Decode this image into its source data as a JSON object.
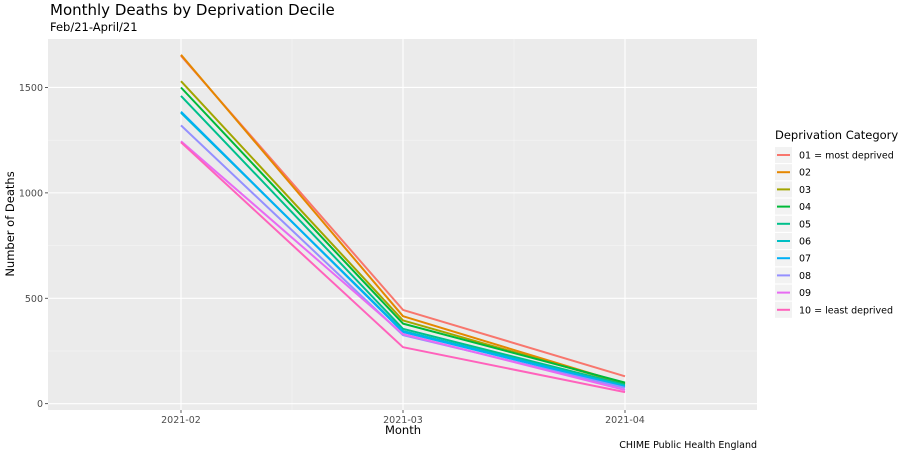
{
  "chart_data": {
    "type": "line",
    "title": "Monthly Deaths by Deprivation Decile",
    "subtitle": "Feb/21-April/21",
    "xlabel": "Month",
    "ylabel": "Number of Deaths",
    "caption": "CHIME Public Health England",
    "categories": [
      "2021-02",
      "2021-03",
      "2021-04"
    ],
    "ylim": [
      -30,
      1730
    ],
    "yticks": [
      0,
      500,
      1000,
      1500
    ],
    "grid": true,
    "legend_position": "right",
    "legend_title": "Deprivation Category",
    "series": [
      {
        "name": "01 = most deprived",
        "color": "#F8766D",
        "values": [
          1650,
          445,
          130
        ]
      },
      {
        "name": "02",
        "color": "#E58700",
        "values": [
          1655,
          415,
          95
        ]
      },
      {
        "name": "03",
        "color": "#A3A500",
        "values": [
          1530,
          395,
          95
        ]
      },
      {
        "name": "04",
        "color": "#00BA38",
        "values": [
          1500,
          380,
          100
        ]
      },
      {
        "name": "05",
        "color": "#00C08B",
        "values": [
          1460,
          355,
          90
        ]
      },
      {
        "name": "06",
        "color": "#00BFC4",
        "values": [
          1380,
          345,
          85
        ]
      },
      {
        "name": "07",
        "color": "#00B0F6",
        "values": [
          1385,
          340,
          80
        ]
      },
      {
        "name": "08",
        "color": "#9590FF",
        "values": [
          1320,
          325,
          75
        ]
      },
      {
        "name": "09",
        "color": "#E76BF3",
        "values": [
          1245,
          330,
          65
        ]
      },
      {
        "name": "10 = least deprived",
        "color": "#FF62BC",
        "values": [
          1240,
          268,
          55
        ]
      }
    ]
  }
}
